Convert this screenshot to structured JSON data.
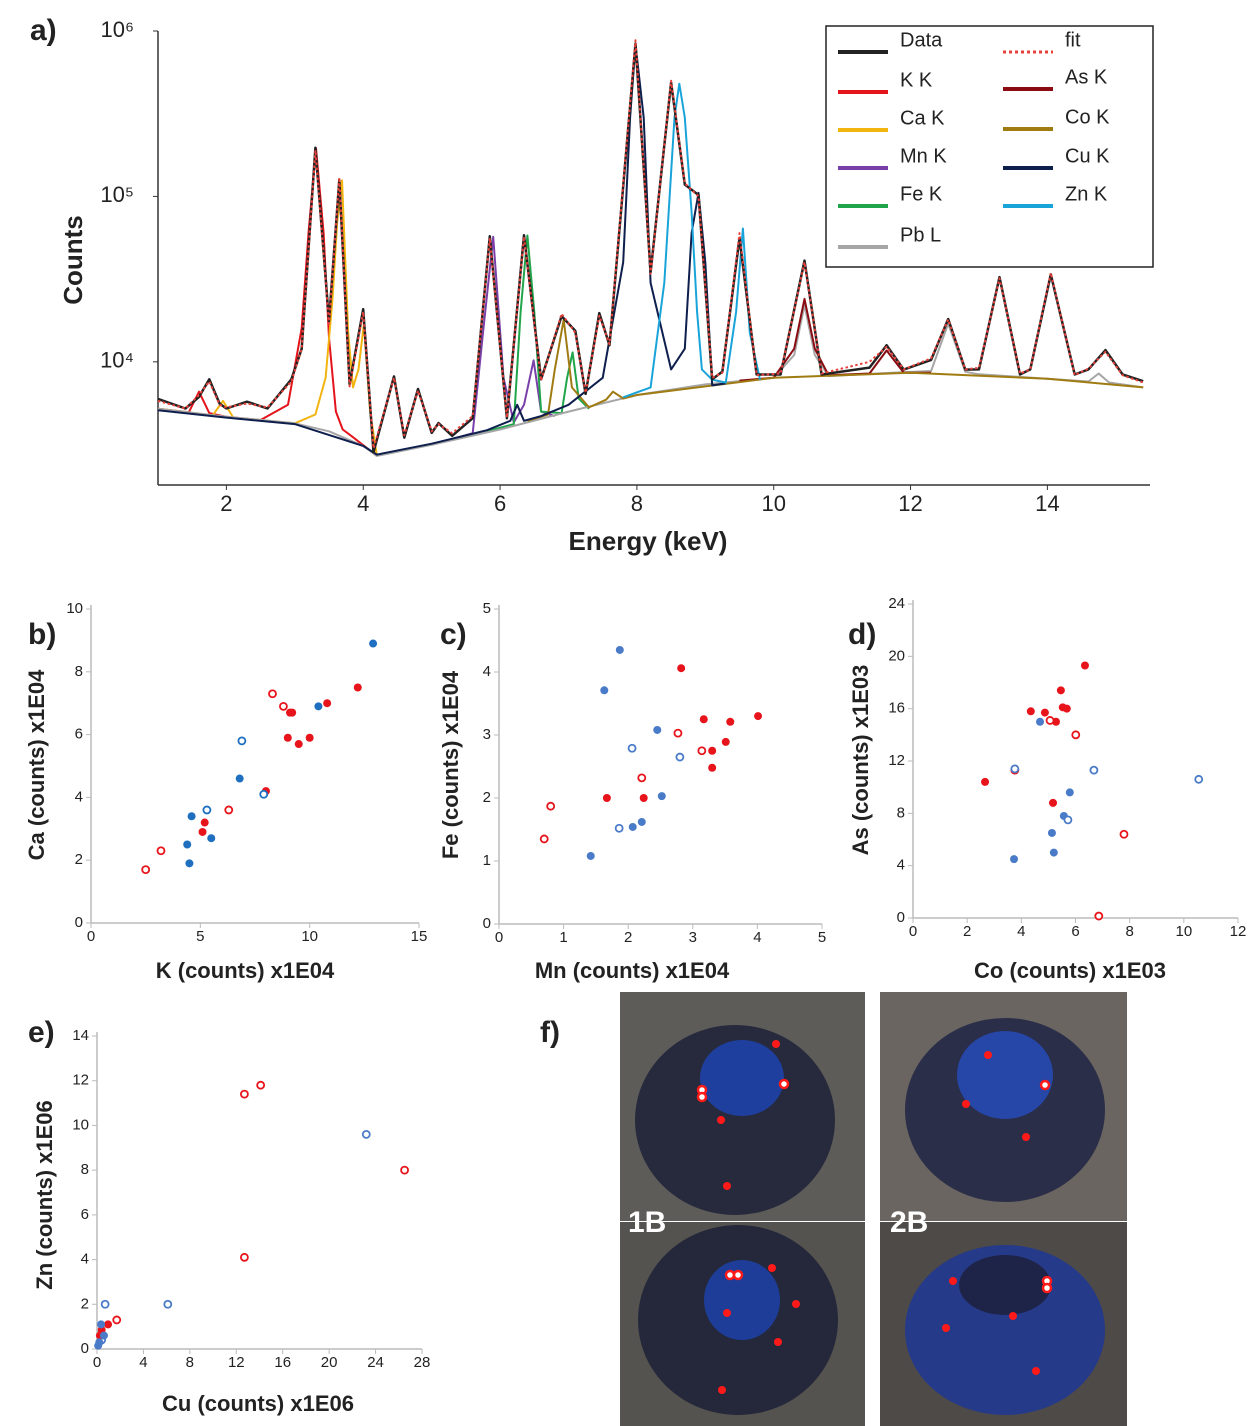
{
  "chart_data": [
    {
      "type": "line",
      "panel": "a)",
      "x_label": "Energy (keV)",
      "y_label": "Counts",
      "log_y": true,
      "legend": "upper right",
      "xlim": [
        1,
        15.5
      ],
      "xticks": [
        2,
        4,
        6,
        8,
        10,
        12,
        14
      ],
      "ylim": [
        1800,
        1000000
      ],
      "yticks": [
        {
          "value": 10000,
          "label": "10⁴"
        },
        {
          "value": 100000,
          "label": "10⁵"
        },
        {
          "value": 1000000,
          "label": "10⁶"
        }
      ],
      "series": [
        {
          "name": "Data",
          "color": "#222222",
          "x": [
            1.0,
            1.4,
            1.6,
            1.75,
            1.9,
            2.0,
            2.3,
            2.6,
            2.95,
            3.1,
            3.3,
            3.5,
            3.65,
            3.8,
            4.0,
            4.15,
            4.45,
            4.6,
            4.8,
            5.0,
            5.1,
            5.3,
            5.6,
            5.85,
            6.1,
            6.35,
            6.6,
            6.9,
            7.1,
            7.25,
            7.45,
            7.6,
            7.98,
            8.2,
            8.5,
            8.7,
            8.9,
            9.1,
            9.25,
            9.5,
            9.75,
            10.1,
            10.45,
            10.7,
            11.4,
            11.65,
            11.9,
            12.3,
            12.55,
            12.8,
            13.0,
            13.3,
            13.6,
            13.75,
            14.05,
            14.4,
            14.6,
            14.85,
            15.1,
            15.4
          ],
          "values": [
            5970,
            5220,
            6140,
            7840,
            5590,
            5220,
            5740,
            5220,
            7840,
            12000,
            196800,
            17660,
            126000,
            7320,
            20800,
            2840,
            8160,
            3480,
            6850,
            3720,
            4260,
            3570,
            4560,
            57400,
            4560,
            58300,
            7840,
            18900,
            15400,
            6400,
            19700,
            12600,
            839000,
            34800,
            488000,
            118000,
            102000,
            7840,
            8730,
            55900,
            8380,
            8380,
            40900,
            8380,
            9220,
            12600,
            8970,
            10270,
            18140,
            8970,
            9000,
            32500,
            8380,
            9000,
            33800,
            8380,
            9000,
            11770,
            8380,
            7630
          ]
        },
        {
          "name": "fit",
          "color": "#e8413c",
          "style": "dotted",
          "x": [
            1.0,
            1.4,
            1.6,
            1.75,
            1.9,
            2.0,
            2.3,
            2.6,
            2.95,
            3.1,
            3.3,
            3.5,
            3.65,
            3.8,
            4.0,
            4.15,
            4.45,
            4.6,
            4.8,
            5.0,
            5.1,
            5.3,
            5.6,
            5.85,
            6.1,
            6.35,
            6.6,
            6.9,
            7.1,
            7.25,
            7.45,
            7.6,
            7.98,
            8.2,
            8.5,
            8.7,
            8.9,
            9.1,
            9.25,
            9.5,
            9.75,
            10.1,
            10.45,
            10.7,
            11.4,
            11.65,
            11.9,
            12.3,
            12.55,
            12.8,
            13.0,
            13.3,
            13.6,
            13.75,
            14.05,
            14.4,
            14.6,
            14.85,
            15.1,
            15.4
          ],
          "values": [
            5800,
            5220,
            6300,
            7600,
            5500,
            5300,
            5600,
            5300,
            7600,
            12000,
            190000,
            17000,
            130000,
            7100,
            20000,
            3000,
            8000,
            3600,
            6700,
            3800,
            4200,
            3700,
            4700,
            56000,
            4600,
            57000,
            7700,
            19500,
            15000,
            6500,
            19000,
            12800,
            880000,
            34000,
            500000,
            120000,
            100000,
            8000,
            8600,
            60000,
            8300,
            8500,
            40000,
            8500,
            10000,
            12300,
            9000,
            10500,
            18000,
            9000,
            9200,
            32000,
            8500,
            9000,
            34500,
            8300,
            9100,
            11500,
            8300,
            7500
          ]
        },
        {
          "name": "K K",
          "color": "#e3141b",
          "x": [
            1,
            1.45,
            1.6,
            1.75,
            2,
            2.5,
            2.9,
            3.1,
            3.2,
            3.31,
            3.42,
            3.5,
            3.6,
            3.7,
            3.85,
            4.2
          ],
          "values": [
            5200,
            4950,
            6600,
            4900,
            4650,
            4450,
            5500,
            16000,
            60000,
            196000,
            60000,
            14000,
            5000,
            3900,
            3500,
            2700
          ]
        },
        {
          "name": "Ca K",
          "color": "#f2b40f",
          "x": [
            1,
            1.8,
            1.95,
            2.1,
            2.5,
            3.0,
            3.3,
            3.45,
            3.55,
            3.62,
            3.69,
            3.78,
            3.85,
            3.93,
            4.01,
            4.1,
            4.2
          ],
          "values": [
            5200,
            4750,
            5800,
            4600,
            4450,
            4250,
            4800,
            8000,
            24000,
            70000,
            125000,
            15000,
            7000,
            9000,
            17000,
            5000,
            2700
          ]
        },
        {
          "name": "Mn K",
          "color": "#7a3fa8",
          "x": [
            5,
            5.6,
            5.75,
            5.9,
            6.05,
            6.2,
            6.35,
            6.49,
            6.6,
            6.8
          ],
          "values": [
            3150,
            3700,
            15000,
            57000,
            8000,
            4300,
            5500,
            10200,
            5000,
            4700
          ]
        },
        {
          "name": "Fe K",
          "color": "#20a54a",
          "x": [
            5.8,
            6.2,
            6.3,
            6.4,
            6.5,
            6.6,
            6.9,
            6.98,
            7.06,
            7.15,
            7.3
          ],
          "values": [
            3800,
            4200,
            20000,
            58000,
            20000,
            5000,
            4900,
            8000,
            11400,
            6000,
            5200
          ]
        },
        {
          "name": "Pb L",
          "color": "#a6a6a6",
          "x": [
            1,
            2,
            3,
            3.5,
            4,
            4.2,
            5,
            6,
            7,
            8,
            9,
            10,
            10.3,
            10.45,
            10.6,
            10.8,
            11.5,
            12.3,
            12.55,
            12.8,
            13,
            14,
            14.6,
            14.75,
            14.9,
            15.4
          ],
          "values": [
            5200,
            4650,
            4250,
            3800,
            3100,
            2700,
            3150,
            3900,
            5000,
            6300,
            7300,
            8000,
            11000,
            22000,
            11000,
            8200,
            8500,
            8800,
            17000,
            8700,
            8400,
            7900,
            7600,
            8500,
            7500,
            7000
          ]
        },
        {
          "name": "As K",
          "color": "#8b0b12",
          "x": [
            9.5,
            10,
            10.3,
            10.45,
            10.6,
            10.8,
            11.4,
            11.65,
            11.9,
            12.3
          ],
          "values": [
            7700,
            8000,
            12000,
            24000,
            12000,
            8300,
            8500,
            11700,
            8600,
            8600
          ]
        },
        {
          "name": "Co K",
          "color": "#a07b12",
          "x": [
            6.4,
            6.7,
            6.8,
            6.93,
            7.05,
            7.3,
            7.55,
            7.65,
            7.8,
            8.0,
            10,
            12,
            14,
            15.4
          ],
          "values": [
            4400,
            4800,
            9000,
            18000,
            7000,
            5300,
            5900,
            6600,
            6000,
            6300,
            8000,
            8600,
            7900,
            7000
          ]
        },
        {
          "name": "Cu K",
          "color": "#0e1f4d",
          "x": [
            1,
            2,
            3,
            4,
            4.2,
            5,
            5.8,
            6.15,
            6.25,
            6.35,
            6.6,
            7.0,
            7.5,
            7.8,
            7.9,
            7.98,
            8.1,
            8.2,
            8.5,
            8.7,
            8.8,
            8.9,
            9.0,
            9.1,
            9.3
          ],
          "values": [
            5100,
            4600,
            4200,
            3100,
            2750,
            3200,
            3850,
            4400,
            5500,
            4400,
            4700,
            5500,
            8000,
            40000,
            300000,
            830000,
            300000,
            30000,
            9000,
            12000,
            60000,
            105000,
            40000,
            7200,
            7400
          ]
        },
        {
          "name": "Zn K",
          "color": "#19a4d9",
          "x": [
            7.8,
            8.2,
            8.4,
            8.55,
            8.62,
            8.7,
            8.8,
            8.88,
            8.95,
            9.1,
            9.3,
            9.45,
            9.55,
            9.65,
            9.8
          ],
          "values": [
            6100,
            7000,
            30000,
            300000,
            480000,
            300000,
            80000,
            20000,
            9000,
            7800,
            7500,
            20000,
            64000,
            15000,
            7800
          ]
        }
      ]
    },
    {
      "type": "scatter",
      "panel": "b)",
      "x_label": "K (counts) x1E04",
      "y_label": "Ca (counts) x1E04",
      "xlim": [
        0,
        15
      ],
      "xticks": [
        0,
        5,
        10,
        15
      ],
      "ylim": [
        0,
        10
      ],
      "yticks": [
        0,
        2,
        4,
        6,
        8,
        10
      ],
      "series": [
        {
          "color": "#e8141b",
          "filled": true,
          "x": [
            5.1,
            5.2,
            8.0,
            9.0,
            9.1,
            9.5,
            10.0,
            10.8,
            12.2,
            9.2
          ],
          "values": [
            2.9,
            3.2,
            4.2,
            5.9,
            6.7,
            5.7,
            5.9,
            7.0,
            7.5,
            6.7
          ]
        },
        {
          "color": "#e8141b",
          "filled": false,
          "x": [
            2.5,
            3.2,
            6.3,
            8.3,
            8.8
          ],
          "values": [
            1.7,
            2.3,
            3.6,
            7.3,
            6.9
          ]
        },
        {
          "color": "#1f6fc0",
          "filled": true,
          "x": [
            4.4,
            4.6,
            4.5,
            5.5,
            6.8,
            10.4,
            12.9
          ],
          "values": [
            2.5,
            3.4,
            1.9,
            2.7,
            4.6,
            6.9,
            8.9
          ]
        },
        {
          "color": "#1f6fc0",
          "filled": false,
          "x": [
            5.3,
            6.9,
            7.9
          ],
          "values": [
            3.6,
            5.8,
            4.1
          ]
        }
      ]
    },
    {
      "type": "scatter",
      "panel": "c)",
      "x_label": "Mn (counts) x1E04",
      "y_label": "Fe (counts) x1E04",
      "xlim": [
        0,
        5
      ],
      "xticks": [
        0,
        1,
        2,
        3,
        4,
        5
      ],
      "ylim": [
        0,
        5
      ],
      "yticks": [
        0,
        1,
        2,
        3,
        4,
        5
      ],
      "series": [
        {
          "color": "#e8141b",
          "filled": true,
          "x": [
            1.67,
            2.24,
            2.82,
            3.17,
            3.3,
            3.3,
            3.51,
            3.58,
            4.01
          ],
          "values": [
            2.0,
            2.0,
            4.06,
            3.25,
            2.75,
            2.48,
            2.89,
            3.21,
            3.3
          ]
        },
        {
          "color": "#e8141b",
          "filled": false,
          "x": [
            0.7,
            0.8,
            2.21,
            2.77,
            3.14
          ],
          "values": [
            1.35,
            1.87,
            2.32,
            3.03,
            2.75
          ]
        },
        {
          "color": "#4a7bc8",
          "filled": true,
          "x": [
            1.42,
            1.63,
            1.87,
            2.07,
            2.21,
            2.45,
            2.52
          ],
          "values": [
            1.08,
            3.71,
            4.35,
            1.54,
            1.62,
            3.08,
            2.03
          ]
        },
        {
          "color": "#4a7bc8",
          "filled": false,
          "x": [
            1.86,
            2.06,
            2.8
          ],
          "values": [
            1.52,
            2.79,
            2.65
          ]
        }
      ]
    },
    {
      "type": "scatter",
      "panel": "d)",
      "x_label": "Co (counts) x1E03",
      "y_label": "As (counts) x1E03",
      "xlim": [
        0,
        12
      ],
      "xticks": [
        0,
        2,
        4,
        6,
        8,
        10,
        12
      ],
      "ylim": [
        0,
        24
      ],
      "yticks": [
        0,
        4,
        8,
        12,
        16,
        20,
        24
      ],
      "series": [
        {
          "color": "#e8141b",
          "filled": true,
          "x": [
            2.66,
            4.35,
            4.87,
            5.17,
            5.28,
            5.46,
            5.53,
            5.68,
            6.35
          ],
          "values": [
            10.4,
            15.8,
            15.7,
            8.8,
            15.0,
            17.4,
            16.1,
            16.0,
            19.3
          ]
        },
        {
          "color": "#e8141b",
          "filled": false,
          "x": [
            3.76,
            5.06,
            6.01,
            7.79,
            6.86
          ],
          "values": [
            11.3,
            15.1,
            14.0,
            6.4,
            0.15
          ]
        },
        {
          "color": "#4a7bc8",
          "filled": true,
          "x": [
            3.73,
            4.69,
            5.13,
            5.2,
            5.57,
            5.79
          ],
          "values": [
            4.5,
            15.0,
            6.5,
            5.0,
            7.8,
            9.6
          ]
        },
        {
          "color": "#4a7bc8",
          "filled": false,
          "x": [
            5.72,
            6.68,
            10.55,
            3.76
          ],
          "values": [
            7.5,
            11.3,
            10.6,
            11.4
          ]
        }
      ]
    },
    {
      "type": "scatter",
      "panel": "e)",
      "x_label": "Cu (counts) x1E06",
      "y_label": "Zn (counts) x1E06",
      "xlim": [
        0,
        28
      ],
      "xticks": [
        0,
        4,
        8,
        12,
        16,
        20,
        24,
        28
      ],
      "ylim": [
        0,
        14
      ],
      "yticks": [
        0,
        2,
        4,
        6,
        8,
        10,
        12,
        14
      ],
      "series": [
        {
          "color": "#e8141b",
          "filled": false,
          "x": [
            12.7,
            14.1,
            26.5,
            12.7,
            1.7
          ],
          "values": [
            11.4,
            11.8,
            8.0,
            4.1,
            1.3
          ]
        },
        {
          "color": "#4a7bc8",
          "filled": false,
          "x": [
            23.2,
            6.1,
            0.7,
            0.4
          ],
          "values": [
            9.6,
            2.0,
            2.0,
            0.4
          ]
        },
        {
          "color": "#e8141b",
          "filled": true,
          "x": [
            0.95,
            0.4,
            0.25
          ],
          "values": [
            1.1,
            0.85,
            0.6
          ]
        },
        {
          "color": "#4a7bc8",
          "filled": true,
          "x": [
            0.35,
            0.6,
            0.2,
            0.1
          ],
          "values": [
            1.1,
            0.6,
            0.3,
            0.15
          ]
        }
      ]
    }
  ],
  "panel_f": {
    "panel": "f)",
    "labels": [
      "1B",
      "2B"
    ]
  }
}
